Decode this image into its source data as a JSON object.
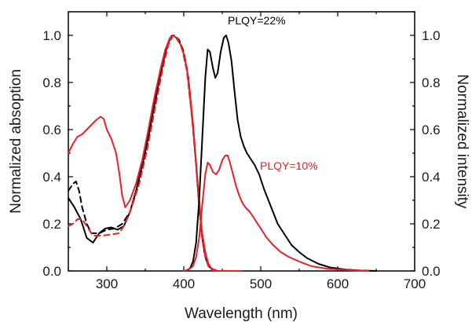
{
  "chart_data": {
    "type": "line",
    "title": "",
    "xlabel": "Wavelength (nm)",
    "ylabel_left": "Normalized absoption",
    "ylabel_right": "Normalized intensity",
    "xlim": [
      250,
      700
    ],
    "ylim": [
      0,
      1.1
    ],
    "y2lim": [
      0,
      1.1
    ],
    "x_ticks": [
      300,
      400,
      500,
      600,
      700
    ],
    "y_ticks": [
      0.0,
      0.2,
      0.4,
      0.6,
      0.8,
      1.0
    ],
    "y_tick_labels": [
      "0.0",
      "0.2",
      "0.4",
      "0.6",
      "0.8",
      "1.0"
    ],
    "grid": false,
    "legend": "none",
    "annotations": [
      {
        "text": "PLQY=22%",
        "color": "#000000"
      },
      {
        "text": "PLQY=10%",
        "color": "#e8202a"
      }
    ],
    "series": [
      {
        "color": "#000000",
        "dash": "solid",
        "axis": "left",
        "points": [
          [
            250,
            0.31
          ],
          [
            258,
            0.27
          ],
          [
            266,
            0.22
          ],
          [
            274,
            0.14
          ],
          [
            282,
            0.12
          ],
          [
            290,
            0.16
          ],
          [
            298,
            0.18
          ],
          [
            306,
            0.185
          ],
          [
            314,
            0.175
          ],
          [
            322,
            0.19
          ],
          [
            330,
            0.25
          ],
          [
            338,
            0.34
          ],
          [
            346,
            0.45
          ],
          [
            354,
            0.57
          ],
          [
            362,
            0.71
          ],
          [
            370,
            0.84
          ],
          [
            376,
            0.93
          ],
          [
            382,
            0.985
          ],
          [
            386,
            1.0
          ],
          [
            390,
            0.99
          ],
          [
            396,
            0.96
          ],
          [
            400,
            0.92
          ],
          [
            404,
            0.86
          ],
          [
            408,
            0.75
          ],
          [
            412,
            0.61
          ],
          [
            416,
            0.45
          ],
          [
            420,
            0.28
          ],
          [
            424,
            0.14
          ],
          [
            428,
            0.06
          ],
          [
            432,
            0.02
          ],
          [
            436,
            0.01
          ],
          [
            442,
            0.0
          ],
          [
            460,
            0.0
          ],
          [
            470,
            0.0
          ]
        ]
      },
      {
        "color": "#000000",
        "dash": "dashed",
        "axis": "left",
        "points": [
          [
            250,
            0.34
          ],
          [
            256,
            0.37
          ],
          [
            260,
            0.38
          ],
          [
            264,
            0.34
          ],
          [
            268,
            0.27
          ],
          [
            274,
            0.2
          ],
          [
            280,
            0.16
          ],
          [
            290,
            0.16
          ],
          [
            300,
            0.175
          ],
          [
            310,
            0.18
          ],
          [
            320,
            0.2
          ],
          [
            330,
            0.25
          ],
          [
            340,
            0.35
          ],
          [
            350,
            0.49
          ],
          [
            360,
            0.66
          ],
          [
            370,
            0.83
          ],
          [
            378,
            0.95
          ],
          [
            384,
            0.998
          ],
          [
            388,
            1.0
          ],
          [
            394,
            0.98
          ],
          [
            400,
            0.93
          ],
          [
            406,
            0.82
          ],
          [
            412,
            0.62
          ],
          [
            418,
            0.37
          ],
          [
            422,
            0.2
          ],
          [
            426,
            0.09
          ],
          [
            430,
            0.04
          ],
          [
            436,
            0.01
          ],
          [
            444,
            0.0
          ],
          [
            460,
            0.0
          ]
        ]
      },
      {
        "color": "#e8202a",
        "dash": "solid",
        "axis": "left",
        "points": [
          [
            250,
            0.5
          ],
          [
            256,
            0.54
          ],
          [
            262,
            0.57
          ],
          [
            268,
            0.58
          ],
          [
            274,
            0.6
          ],
          [
            280,
            0.62
          ],
          [
            286,
            0.64
          ],
          [
            292,
            0.655
          ],
          [
            296,
            0.645
          ],
          [
            300,
            0.6
          ],
          [
            306,
            0.56
          ],
          [
            312,
            0.5
          ],
          [
            316,
            0.42
          ],
          [
            320,
            0.32
          ],
          [
            324,
            0.27
          ],
          [
            330,
            0.3
          ],
          [
            338,
            0.37
          ],
          [
            346,
            0.47
          ],
          [
            354,
            0.6
          ],
          [
            362,
            0.74
          ],
          [
            370,
            0.86
          ],
          [
            376,
            0.94
          ],
          [
            382,
            0.99
          ],
          [
            386,
            1.0
          ],
          [
            390,
            0.99
          ],
          [
            396,
            0.96
          ],
          [
            400,
            0.92
          ],
          [
            404,
            0.86
          ],
          [
            408,
            0.76
          ],
          [
            412,
            0.62
          ],
          [
            416,
            0.46
          ],
          [
            420,
            0.3
          ],
          [
            424,
            0.16
          ],
          [
            428,
            0.08
          ],
          [
            432,
            0.03
          ],
          [
            436,
            0.01
          ],
          [
            444,
            0.0
          ],
          [
            460,
            0.0
          ],
          [
            475,
            0.0
          ]
        ]
      },
      {
        "color": "#e8202a",
        "dash": "dashed",
        "axis": "left",
        "points": [
          [
            250,
            0.19
          ],
          [
            256,
            0.2
          ],
          [
            262,
            0.22
          ],
          [
            268,
            0.22
          ],
          [
            274,
            0.19
          ],
          [
            282,
            0.15
          ],
          [
            294,
            0.15
          ],
          [
            306,
            0.155
          ],
          [
            316,
            0.16
          ],
          [
            324,
            0.2
          ],
          [
            332,
            0.27
          ],
          [
            342,
            0.37
          ],
          [
            352,
            0.51
          ],
          [
            362,
            0.68
          ],
          [
            372,
            0.85
          ],
          [
            380,
            0.96
          ],
          [
            386,
            1.0
          ],
          [
            392,
            0.985
          ],
          [
            398,
            0.94
          ],
          [
            404,
            0.85
          ],
          [
            410,
            0.67
          ],
          [
            416,
            0.45
          ],
          [
            420,
            0.28
          ],
          [
            424,
            0.14
          ],
          [
            428,
            0.06
          ],
          [
            432,
            0.02
          ],
          [
            438,
            0.0
          ],
          [
            460,
            0.0
          ]
        ]
      },
      {
        "color": "#000000",
        "dash": "solid",
        "axis": "right",
        "points": [
          [
            402,
            0.0
          ],
          [
            408,
            0.01
          ],
          [
            412,
            0.04
          ],
          [
            416,
            0.12
          ],
          [
            420,
            0.3
          ],
          [
            424,
            0.56
          ],
          [
            428,
            0.82
          ],
          [
            431,
            0.94
          ],
          [
            434,
            0.93
          ],
          [
            438,
            0.86
          ],
          [
            441,
            0.82
          ],
          [
            444,
            0.84
          ],
          [
            448,
            0.93
          ],
          [
            452,
            0.99
          ],
          [
            455,
            1.0
          ],
          [
            458,
            0.97
          ],
          [
            462,
            0.89
          ],
          [
            466,
            0.76
          ],
          [
            470,
            0.64
          ],
          [
            474,
            0.57
          ],
          [
            478,
            0.53
          ],
          [
            482,
            0.5
          ],
          [
            486,
            0.48
          ],
          [
            492,
            0.45
          ],
          [
            498,
            0.41
          ],
          [
            504,
            0.35
          ],
          [
            510,
            0.3
          ],
          [
            516,
            0.25
          ],
          [
            522,
            0.2
          ],
          [
            530,
            0.16
          ],
          [
            540,
            0.11
          ],
          [
            550,
            0.08
          ],
          [
            560,
            0.055
          ],
          [
            575,
            0.03
          ],
          [
            590,
            0.015
          ],
          [
            610,
            0.006
          ],
          [
            630,
            0.002
          ],
          [
            650,
            0.0
          ]
        ]
      },
      {
        "color": "#e8202a",
        "dash": "solid",
        "axis": "right",
        "points": [
          [
            400,
            0.0
          ],
          [
            406,
            0.005
          ],
          [
            412,
            0.02
          ],
          [
            416,
            0.06
          ],
          [
            420,
            0.14
          ],
          [
            424,
            0.28
          ],
          [
            428,
            0.41
          ],
          [
            431,
            0.46
          ],
          [
            434,
            0.45
          ],
          [
            438,
            0.42
          ],
          [
            442,
            0.41
          ],
          [
            446,
            0.43
          ],
          [
            450,
            0.47
          ],
          [
            454,
            0.49
          ],
          [
            457,
            0.49
          ],
          [
            460,
            0.46
          ],
          [
            464,
            0.41
          ],
          [
            468,
            0.36
          ],
          [
            472,
            0.32
          ],
          [
            476,
            0.29
          ],
          [
            480,
            0.27
          ],
          [
            486,
            0.25
          ],
          [
            492,
            0.22
          ],
          [
            500,
            0.18
          ],
          [
            508,
            0.14
          ],
          [
            516,
            0.11
          ],
          [
            526,
            0.08
          ],
          [
            536,
            0.06
          ],
          [
            550,
            0.04
          ],
          [
            566,
            0.02
          ],
          [
            585,
            0.01
          ],
          [
            610,
            0.004
          ],
          [
            640,
            0.0
          ]
        ]
      }
    ]
  }
}
